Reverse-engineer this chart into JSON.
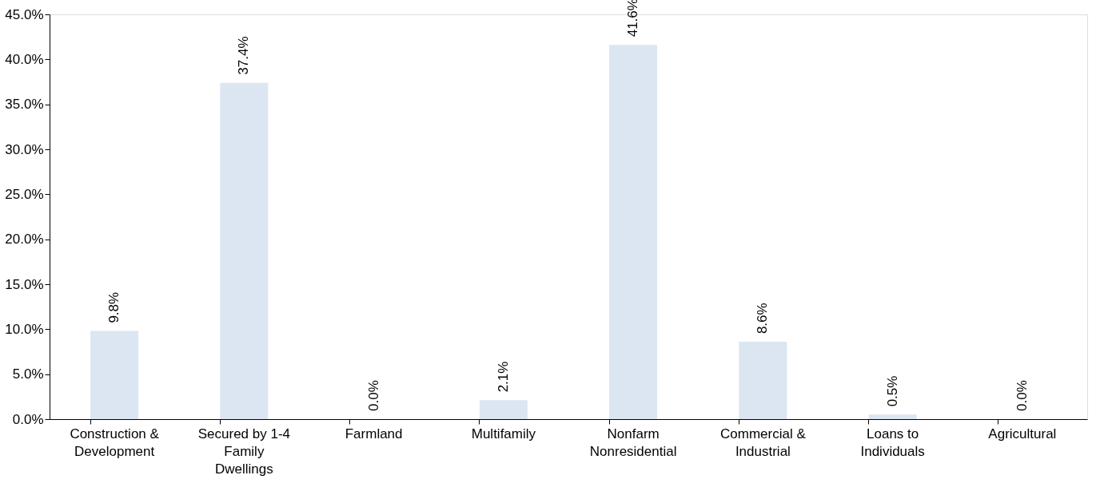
{
  "chart_data": {
    "type": "bar",
    "categories": [
      "Construction & Development",
      "Secured by 1-4 Family Dwellings",
      "Farmland",
      "Multifamily",
      "Nonfarm Nonresidential",
      "Commercial & Industrial",
      "Loans to Individuals",
      "Agricultural"
    ],
    "values": [
      9.8,
      37.4,
      0.0,
      2.1,
      41.6,
      8.6,
      0.5,
      0.0
    ],
    "value_labels": [
      "9.8%",
      "37.4%",
      "0.0%",
      "2.1%",
      "41.6%",
      "8.6%",
      "0.5%",
      "0.0%"
    ],
    "color": "#dce6f2",
    "ylim": [
      0,
      45
    ],
    "yticks": [
      {
        "value": 0,
        "label": "0.0%"
      },
      {
        "value": 5,
        "label": "5.0%"
      },
      {
        "value": 10,
        "label": "10.0%"
      },
      {
        "value": 15,
        "label": "15.0%"
      },
      {
        "value": 20,
        "label": "20.0%"
      },
      {
        "value": 25,
        "label": "25.0%"
      },
      {
        "value": 30,
        "label": "30.0%"
      },
      {
        "value": 35,
        "label": "35.0%"
      },
      {
        "value": 40,
        "label": "40.0%"
      },
      {
        "value": 45,
        "label": "45.0%"
      }
    ],
    "grid": false
  }
}
